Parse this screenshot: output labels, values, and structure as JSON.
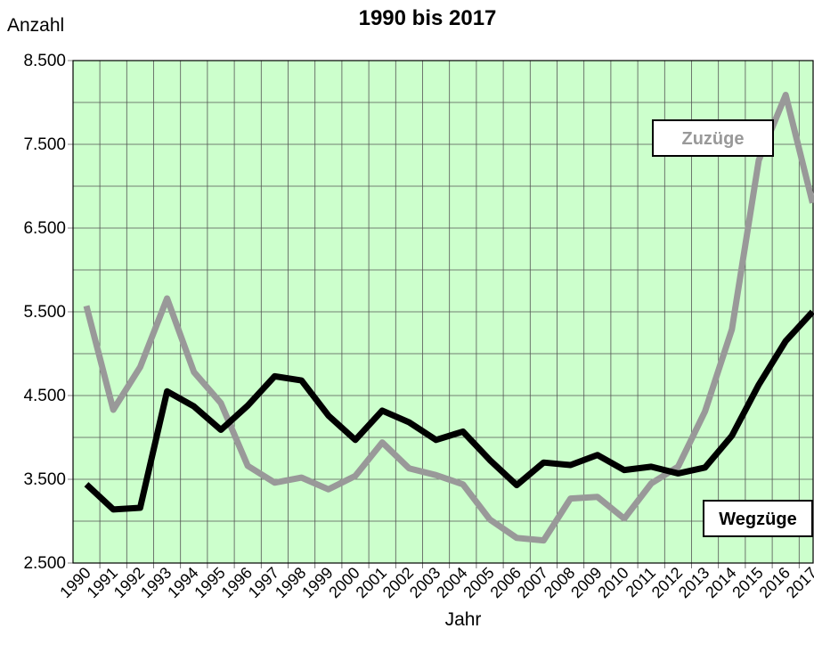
{
  "chart_data": {
    "type": "line",
    "title": "1990 bis 2017",
    "y_label": "Anzahl",
    "x_label": "Jahr",
    "categories": [
      "1990",
      "1991",
      "1992",
      "1993",
      "1994",
      "1995",
      "1996",
      "1997",
      "1998",
      "1999",
      "2000",
      "2001",
      "2002",
      "2003",
      "2004",
      "2005",
      "2006",
      "2007",
      "2008",
      "2009",
      "2010",
      "2011",
      "2012",
      "2013",
      "2014",
      "2015",
      "2016",
      "2017"
    ],
    "series": [
      {
        "name": "Zuzüge",
        "color": "#999999",
        "values": [
          5570,
          4330,
          4840,
          5660,
          4780,
          4410,
          3660,
          3460,
          3520,
          3380,
          3540,
          3940,
          3630,
          3550,
          3440,
          3020,
          2800,
          2770,
          3270,
          3290,
          3030,
          3450,
          3650,
          4310,
          5290,
          7310,
          8090,
          6800
        ]
      },
      {
        "name": "Wegzüge",
        "color": "#000000",
        "values": [
          3440,
          3140,
          3160,
          4550,
          4370,
          4090,
          4380,
          4730,
          4680,
          4260,
          3970,
          4320,
          4180,
          3970,
          4070,
          3730,
          3430,
          3700,
          3670,
          3790,
          3610,
          3650,
          3570,
          3640,
          4020,
          4630,
          5150,
          5500
        ]
      }
    ],
    "ylim": [
      2500,
      8500
    ],
    "yticks": [
      {
        "value": 2500,
        "label": "2.500"
      },
      {
        "value": 3500,
        "label": "3.500"
      },
      {
        "value": 4500,
        "label": "4.500"
      },
      {
        "value": 5500,
        "label": "5.500"
      },
      {
        "value": 6500,
        "label": "6.500"
      },
      {
        "value": 7500,
        "label": "7.500"
      },
      {
        "value": 8500,
        "label": "8.500"
      }
    ],
    "yticks_minor": [
      3000,
      4000,
      5000,
      6000,
      7000,
      8000
    ],
    "grid": true,
    "background": "#ccffcc"
  }
}
